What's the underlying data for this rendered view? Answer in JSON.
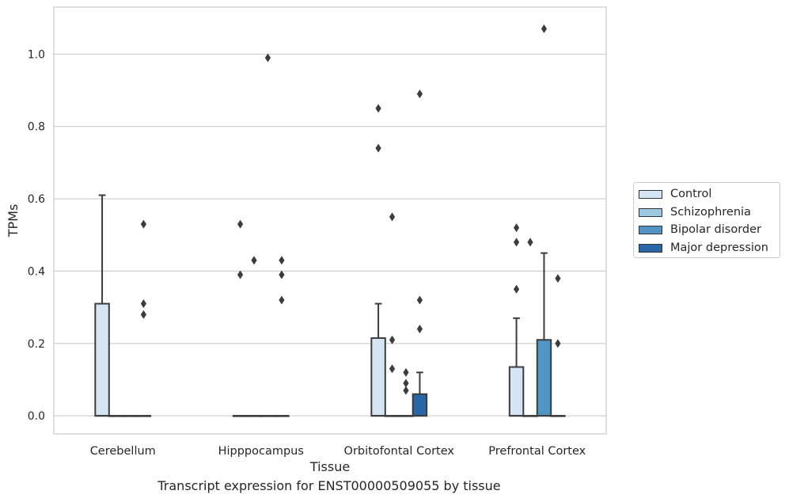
{
  "caption": "Transcript expression for ENST00000509055 by tissue",
  "colors": {
    "Control": "#d6e5f3",
    "Schizophrenia": "#9ac8e0",
    "Bipolar disorder": "#5295c4",
    "Major depression": "#2866a8"
  },
  "chart_data": {
    "type": "box",
    "title": "",
    "xlabel": "Tissue",
    "ylabel": "TPMs",
    "ylim": [
      -0.05,
      1.13
    ],
    "yticks": [
      "0.0",
      "0.2",
      "0.4",
      "0.6",
      "0.8",
      "1.0"
    ],
    "grid": "horizontal",
    "legend_position": "right",
    "categories": [
      "Cerebellum",
      "Hipppocampus",
      "Orbitofontal Cortex",
      "Prefrontal Cortex"
    ],
    "series": [
      {
        "name": "Control",
        "boxes": [
          {
            "q1": 0,
            "median": 0,
            "q3": 0.31,
            "whisker_low": 0,
            "whisker_high": 0.61,
            "outliers": []
          },
          {
            "q1": 0,
            "median": 0,
            "q3": 0,
            "whisker_low": 0,
            "whisker_high": 0,
            "outliers": [
              0.53,
              0.39
            ]
          },
          {
            "q1": 0,
            "median": 0,
            "q3": 0.215,
            "whisker_low": 0,
            "whisker_high": 0.31,
            "outliers": [
              0.85,
              0.74
            ]
          },
          {
            "q1": 0,
            "median": 0,
            "q3": 0.135,
            "whisker_low": 0,
            "whisker_high": 0.27,
            "outliers": [
              0.52,
              0.48,
              0.35
            ]
          }
        ]
      },
      {
        "name": "Schizophrenia",
        "boxes": [
          {
            "q1": 0,
            "median": 0,
            "q3": 0,
            "whisker_low": 0,
            "whisker_high": 0,
            "outliers": []
          },
          {
            "q1": 0,
            "median": 0,
            "q3": 0,
            "whisker_low": 0,
            "whisker_high": 0,
            "outliers": [
              0.43
            ]
          },
          {
            "q1": 0,
            "median": 0,
            "q3": 0,
            "whisker_low": 0,
            "whisker_high": 0,
            "outliers": [
              0.55,
              0.21,
              0.13
            ]
          },
          {
            "q1": 0,
            "median": 0,
            "q3": 0,
            "whisker_low": 0,
            "whisker_high": 0,
            "outliers": [
              0.48
            ]
          }
        ]
      },
      {
        "name": "Bipolar disorder",
        "boxes": [
          {
            "q1": 0,
            "median": 0,
            "q3": 0,
            "whisker_low": 0,
            "whisker_high": 0,
            "outliers": []
          },
          {
            "q1": 0,
            "median": 0,
            "q3": 0,
            "whisker_low": 0,
            "whisker_high": 0,
            "outliers": [
              0.99
            ]
          },
          {
            "q1": 0,
            "median": 0,
            "q3": 0,
            "whisker_low": 0,
            "whisker_high": 0,
            "outliers": [
              0.12,
              0.09,
              0.07
            ]
          },
          {
            "q1": 0,
            "median": 0,
            "q3": 0.21,
            "whisker_low": 0,
            "whisker_high": 0.45,
            "outliers": [
              1.07
            ]
          }
        ]
      },
      {
        "name": "Major depression",
        "boxes": [
          {
            "q1": 0,
            "median": 0,
            "q3": 0,
            "whisker_low": 0,
            "whisker_high": 0,
            "outliers": [
              0.53,
              0.31,
              0.28
            ]
          },
          {
            "q1": 0,
            "median": 0,
            "q3": 0,
            "whisker_low": 0,
            "whisker_high": 0,
            "outliers": [
              0.43,
              0.39,
              0.32
            ]
          },
          {
            "q1": 0,
            "median": 0,
            "q3": 0.06,
            "whisker_low": 0,
            "whisker_high": 0.12,
            "outliers": [
              0.89,
              0.32,
              0.24
            ]
          },
          {
            "q1": 0,
            "median": 0,
            "q3": 0,
            "whisker_low": 0,
            "whisker_high": 0,
            "outliers": [
              0.38,
              0.2
            ]
          }
        ]
      }
    ]
  }
}
